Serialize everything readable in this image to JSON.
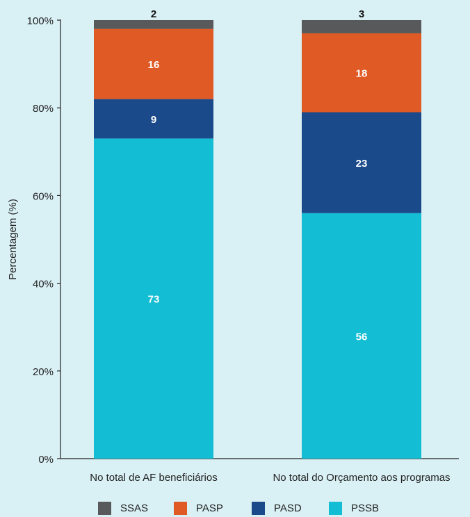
{
  "chart_data": {
    "type": "bar",
    "stacked": true,
    "ylabel": "Percentagem (%)",
    "xlabel": "",
    "ylim": [
      0,
      100
    ],
    "yticks": [
      "0%",
      "20%",
      "40%",
      "60%",
      "80%",
      "100%"
    ],
    "categories": [
      "No total de AF beneficiários",
      "No total do Orçamento aos programas"
    ],
    "series": [
      {
        "name": "PSSB",
        "color": "#13bdd3",
        "values": [
          73,
          56
        ]
      },
      {
        "name": "PASD",
        "color": "#1b4a8a",
        "values": [
          9,
          23
        ]
      },
      {
        "name": "PASP",
        "color": "#e05a25",
        "values": [
          16,
          18
        ]
      },
      {
        "name": "SSAS",
        "color": "#58595b",
        "values": [
          2,
          3
        ]
      }
    ],
    "legend_position": "bottom",
    "legend_order": [
      "SSAS",
      "PASP",
      "PASD",
      "PSSB"
    ],
    "grid": false
  }
}
